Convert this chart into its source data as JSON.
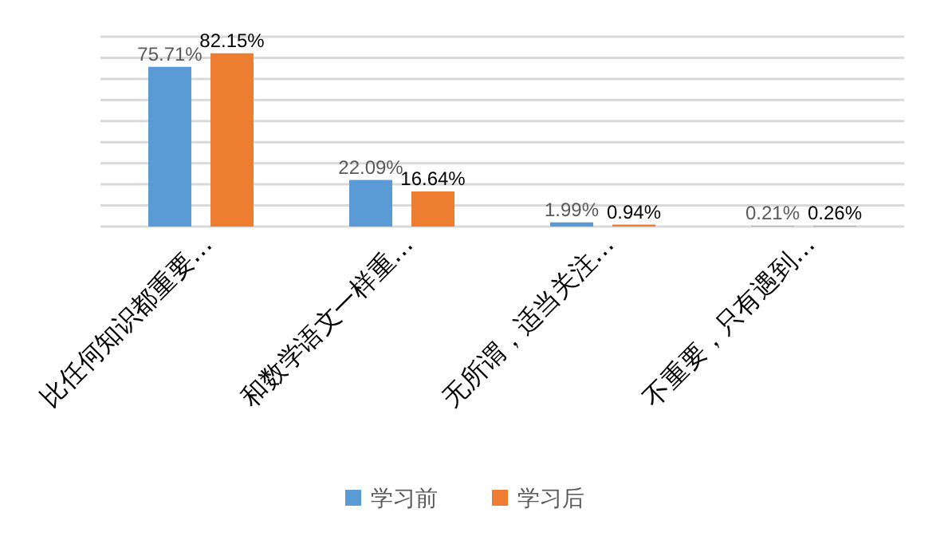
{
  "chart_data": {
    "type": "bar",
    "categories": [
      "比任何知识都重要…",
      "和数学语文一样重…",
      "无所谓，适当关注…",
      "不重要，只有遇到…"
    ],
    "series": [
      {
        "name": "学习前",
        "color": "#5b9bd5",
        "values": [
          75.71,
          22.09,
          1.99,
          0.21
        ],
        "value_labels": [
          "75.71%",
          "22.09%",
          "1.99%",
          "0.21%"
        ]
      },
      {
        "name": "学习后",
        "color": "#ed7d31",
        "values": [
          82.15,
          16.64,
          0.94,
          0.26
        ],
        "value_labels": [
          "82.15%",
          "16.64%",
          "0.94%",
          "0.26%"
        ]
      }
    ],
    "ylim": [
      0,
      90
    ],
    "yticks": [
      {
        "value": 0,
        "label": null
      },
      {
        "value": 10,
        "label": null
      },
      {
        "value": 20,
        "label": null
      },
      {
        "value": 30,
        "label": null
      },
      {
        "value": 40,
        "label": null
      },
      {
        "value": 50,
        "label": null
      },
      {
        "value": 60,
        "label": null
      },
      {
        "value": 70,
        "label": null
      },
      {
        "value": 80,
        "label": null
      },
      {
        "value": 90,
        "label": null
      }
    ],
    "grid": "y",
    "legend": "bottom",
    "tick_labels": "x"
  }
}
